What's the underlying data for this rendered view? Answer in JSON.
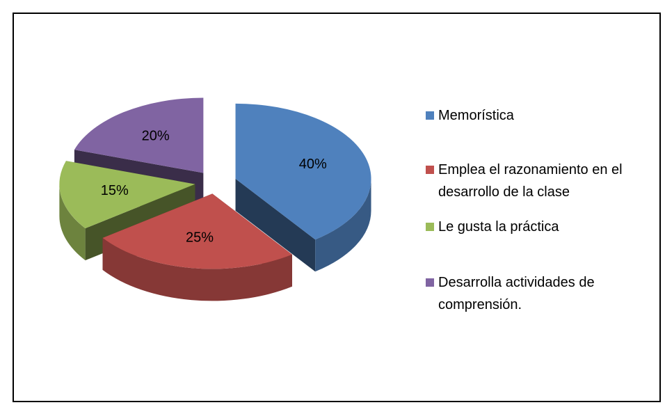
{
  "chart_data": {
    "type": "pie",
    "categories": [
      "Memorística",
      "Emplea el razonamiento en el desarrollo de la clase",
      "Le gusta la práctica",
      "Desarrolla actividades de comprensión."
    ],
    "values": [
      40,
      25,
      15,
      20
    ],
    "value_labels": [
      "40%",
      "25%",
      "15%",
      "20%"
    ],
    "colors": [
      "#4f81bd",
      "#c0504d",
      "#9bbb59",
      "#8064a2"
    ],
    "legend": "right"
  }
}
